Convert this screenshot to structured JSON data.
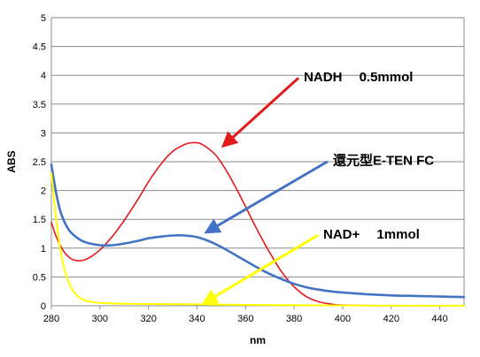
{
  "chart_data": {
    "type": "line",
    "xlabel": "nm",
    "ylabel": "ABS",
    "xlim": [
      280,
      450
    ],
    "ylim": [
      0,
      5
    ],
    "x_ticks": [
      280,
      300,
      320,
      340,
      360,
      380,
      400,
      420,
      440
    ],
    "y_ticks": [
      0,
      0.5,
      1,
      1.5,
      2,
      2.5,
      3,
      3.5,
      4,
      4.5,
      5
    ],
    "grid": "horizontal",
    "series": [
      {
        "color": "#e31a1c",
        "x": [
          280,
          282,
          285,
          288,
          291,
          294,
          297,
          300,
          303,
          306,
          310,
          315,
          320,
          325,
          330,
          335,
          338,
          341,
          344,
          348,
          352,
          356,
          360,
          365,
          370,
          375,
          380,
          385,
          390,
          395,
          400,
          410,
          420,
          430,
          440,
          450
        ],
        "y": [
          1.45,
          1.2,
          0.95,
          0.82,
          0.78,
          0.8,
          0.87,
          0.97,
          1.1,
          1.25,
          1.48,
          1.8,
          2.15,
          2.45,
          2.68,
          2.8,
          2.83,
          2.82,
          2.75,
          2.6,
          2.35,
          2.05,
          1.72,
          1.3,
          0.92,
          0.58,
          0.33,
          0.16,
          0.07,
          0.03,
          0.01,
          0.005,
          0,
          0,
          0,
          0
        ]
      },
      {
        "color": "#4472c4",
        "x": [
          280,
          282,
          284,
          287,
          290,
          293,
          296,
          300,
          305,
          310,
          315,
          320,
          325,
          330,
          335,
          340,
          345,
          350,
          355,
          360,
          365,
          370,
          375,
          380,
          385,
          390,
          395,
          400,
          410,
          420,
          430,
          440,
          450
        ],
        "y": [
          2.45,
          1.95,
          1.6,
          1.33,
          1.2,
          1.12,
          1.08,
          1.05,
          1.05,
          1.08,
          1.12,
          1.17,
          1.2,
          1.22,
          1.22,
          1.19,
          1.12,
          1.02,
          0.9,
          0.78,
          0.66,
          0.55,
          0.46,
          0.38,
          0.32,
          0.28,
          0.25,
          0.23,
          0.2,
          0.18,
          0.17,
          0.16,
          0.15
        ]
      },
      {
        "color": "#ffff00",
        "x": [
          280,
          282,
          284,
          286,
          288,
          290,
          292,
          294,
          296,
          298,
          300,
          305,
          310,
          320,
          330,
          340,
          350,
          360,
          380,
          400,
          450
        ],
        "y": [
          2.3,
          1.5,
          0.9,
          0.55,
          0.33,
          0.2,
          0.13,
          0.09,
          0.07,
          0.06,
          0.05,
          0.04,
          0.035,
          0.03,
          0.028,
          0.025,
          0.02,
          0.015,
          0.01,
          0.005,
          0
        ]
      }
    ],
    "annotations": [
      {
        "text": "NADH　 0.5mmol",
        "color": "#e31a1c",
        "text_x": 384,
        "text_y": 4.0,
        "tip_x": 351,
        "tip_y": 2.78
      },
      {
        "text": "還元型E-TEN FC",
        "color": "#4472c4",
        "text_x": 396,
        "text_y": 2.55,
        "tip_x": 344,
        "tip_y": 1.28
      },
      {
        "text": "NAD+ 　1mmol",
        "color": "#ffff00",
        "text_x": 392,
        "text_y": 1.27,
        "tip_x": 343,
        "tip_y": 0.05
      }
    ]
  }
}
